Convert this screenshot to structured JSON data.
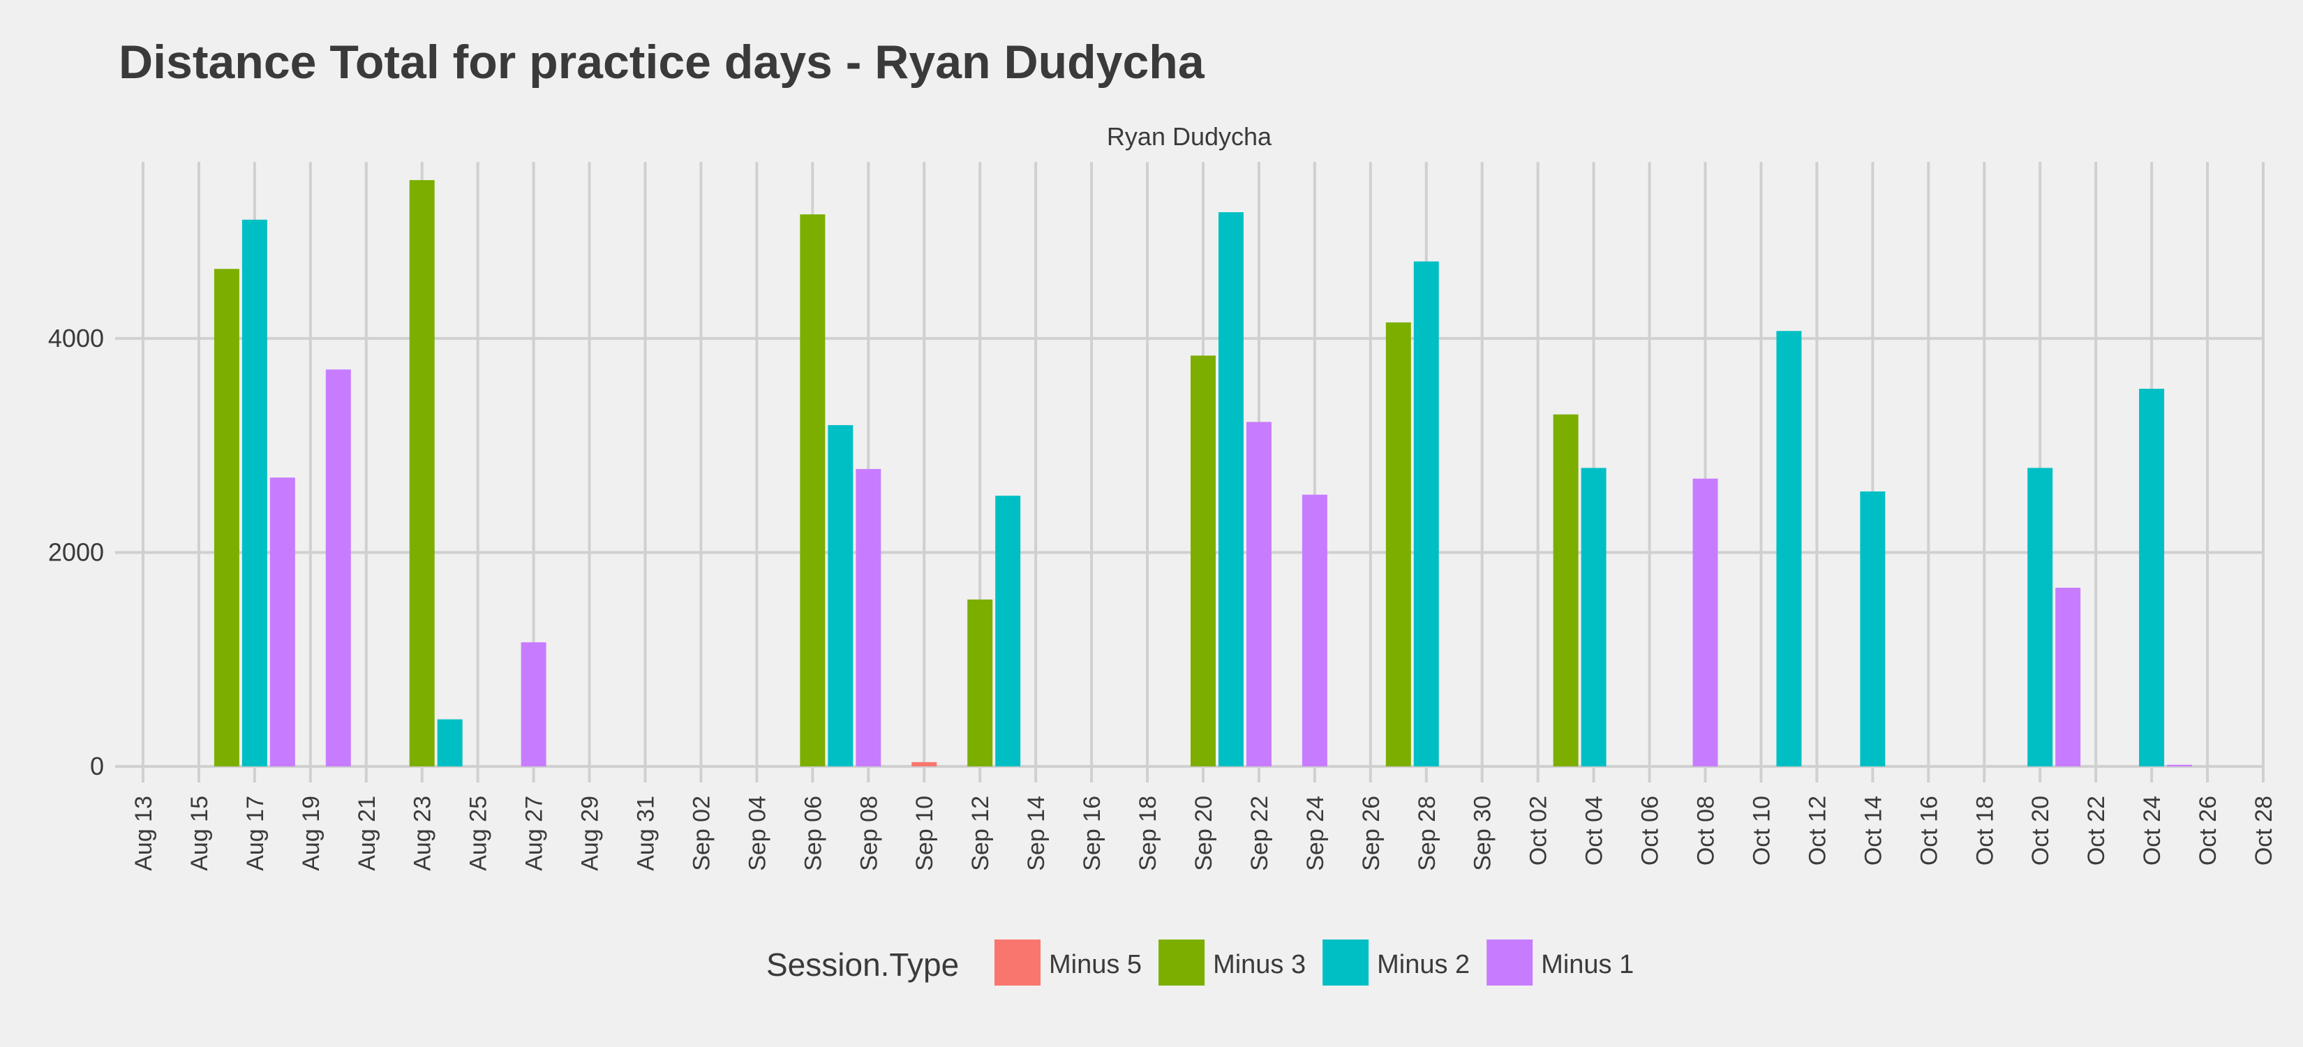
{
  "chart_data": {
    "type": "bar",
    "title": "Distance Total for practice days -  Ryan Dudycha",
    "facet_label": "Ryan Dudycha",
    "xlabel": "",
    "ylabel": "",
    "ylim": [
      -150,
      5650
    ],
    "y_ticks": [
      0,
      2000,
      4000
    ],
    "x_range": [
      "2018-08-12",
      "2018-10-28"
    ],
    "x_tick_labels": [
      "Aug 13",
      "Aug 15",
      "Aug 17",
      "Aug 19",
      "Aug 21",
      "Aug 23",
      "Aug 25",
      "Aug 27",
      "Aug 29",
      "Aug 31",
      "Sep 02",
      "Sep 04",
      "Sep 06",
      "Sep 08",
      "Sep 10",
      "Sep 12",
      "Sep 14",
      "Sep 16",
      "Sep 18",
      "Sep 20",
      "Sep 22",
      "Sep 24",
      "Sep 26",
      "Sep 28",
      "Sep 30",
      "Oct 02",
      "Oct 04",
      "Oct 06",
      "Oct 08",
      "Oct 10",
      "Oct 12",
      "Oct 14",
      "Oct 16",
      "Oct 18",
      "Oct 20",
      "Oct 22",
      "Oct 24",
      "Oct 26",
      "Oct 28"
    ],
    "grid": true,
    "legend": {
      "title": "Session.Type",
      "position": "bottom",
      "entries": [
        "Minus 5",
        "Minus 3",
        "Minus 2",
        "Minus 1"
      ]
    },
    "colors": {
      "Minus 5": "#f8766d",
      "Minus 3": "#7cae00",
      "Minus 2": "#00bfc4",
      "Minus 1": "#c77cff"
    },
    "points": [
      {
        "date": "2018-08-16",
        "type": "Minus 3",
        "value": 4650
      },
      {
        "date": "2018-08-17",
        "type": "Minus 2",
        "value": 5110
      },
      {
        "date": "2018-08-18",
        "type": "Minus 1",
        "value": 2700
      },
      {
        "date": "2018-08-20",
        "type": "Minus 1",
        "value": 3710
      },
      {
        "date": "2018-08-23",
        "type": "Minus 3",
        "value": 5480
      },
      {
        "date": "2018-08-24",
        "type": "Minus 2",
        "value": 440
      },
      {
        "date": "2018-08-27",
        "type": "Minus 1",
        "value": 1160
      },
      {
        "date": "2018-09-06",
        "type": "Minus 3",
        "value": 5160
      },
      {
        "date": "2018-09-07",
        "type": "Minus 2",
        "value": 3190
      },
      {
        "date": "2018-09-08",
        "type": "Minus 1",
        "value": 2780
      },
      {
        "date": "2018-09-10",
        "type": "Minus 5",
        "value": 40
      },
      {
        "date": "2018-09-12",
        "type": "Minus 3",
        "value": 1560
      },
      {
        "date": "2018-09-13",
        "type": "Minus 2",
        "value": 2530
      },
      {
        "date": "2018-09-20",
        "type": "Minus 3",
        "value": 3840
      },
      {
        "date": "2018-09-21",
        "type": "Minus 2",
        "value": 5180
      },
      {
        "date": "2018-09-22",
        "type": "Minus 1",
        "value": 3220
      },
      {
        "date": "2018-09-24",
        "type": "Minus 1",
        "value": 2540
      },
      {
        "date": "2018-09-27",
        "type": "Minus 3",
        "value": 4150
      },
      {
        "date": "2018-09-28",
        "type": "Minus 2",
        "value": 4720
      },
      {
        "date": "2018-10-03",
        "type": "Minus 3",
        "value": 3290
      },
      {
        "date": "2018-10-04",
        "type": "Minus 2",
        "value": 2790
      },
      {
        "date": "2018-10-08",
        "type": "Minus 1",
        "value": 2690
      },
      {
        "date": "2018-10-11",
        "type": "Minus 2",
        "value": 4070
      },
      {
        "date": "2018-10-14",
        "type": "Minus 2",
        "value": 2570
      },
      {
        "date": "2018-10-20",
        "type": "Minus 2",
        "value": 2790
      },
      {
        "date": "2018-10-21",
        "type": "Minus 1",
        "value": 1670
      },
      {
        "date": "2018-10-24",
        "type": "Minus 2",
        "value": 3530
      },
      {
        "date": "2018-10-25",
        "type": "Minus 1",
        "value": 15
      }
    ]
  }
}
